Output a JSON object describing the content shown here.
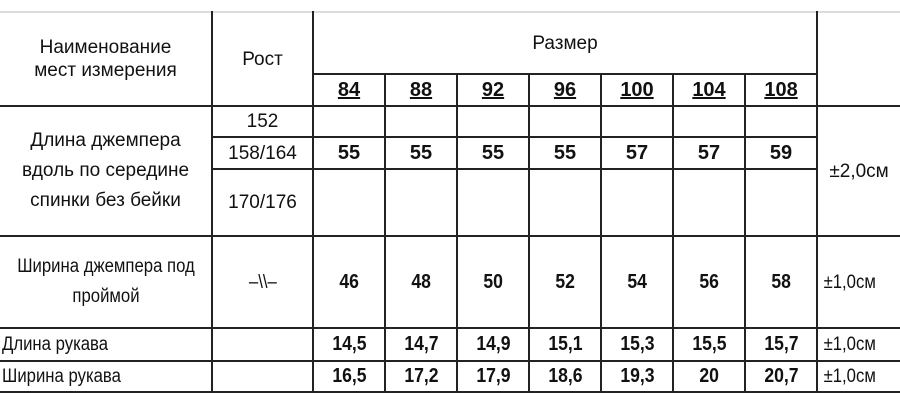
{
  "header": {
    "name_col": "Наименование мест измерения",
    "height_col": "Рост",
    "size_col": "Размер",
    "sizes": [
      "84",
      "88",
      "92",
      "96",
      "100",
      "104",
      "108"
    ]
  },
  "rows": {
    "jumper_length": {
      "label": "Длина джемпера вдоль по середине  спинки без бейки",
      "heights": [
        "152",
        "158/164",
        "170/176"
      ],
      "values": [
        "55",
        "55",
        "55",
        "55",
        "57",
        "57",
        "59"
      ],
      "tolerance": "±2,0см"
    },
    "jumper_width": {
      "label": "Ширина джемпера под проймой",
      "height": "–\\\\–",
      "values": [
        "46",
        "48",
        "50",
        "52",
        "54",
        "56",
        "58"
      ],
      "tolerance": "±1,0см"
    },
    "sleeve_length": {
      "label": "Длина рукава",
      "values": [
        "14,5",
        "14,7",
        "14,9",
        "15,1",
        "15,3",
        "15,5",
        "15,7"
      ],
      "tolerance": "±1,0см"
    },
    "sleeve_width": {
      "label": "Ширина рукава",
      "values": [
        "16,5",
        "17,2",
        "17,9",
        "18,6",
        "19,3",
        "20",
        "20,7"
      ],
      "tolerance": "±1,0см"
    }
  }
}
